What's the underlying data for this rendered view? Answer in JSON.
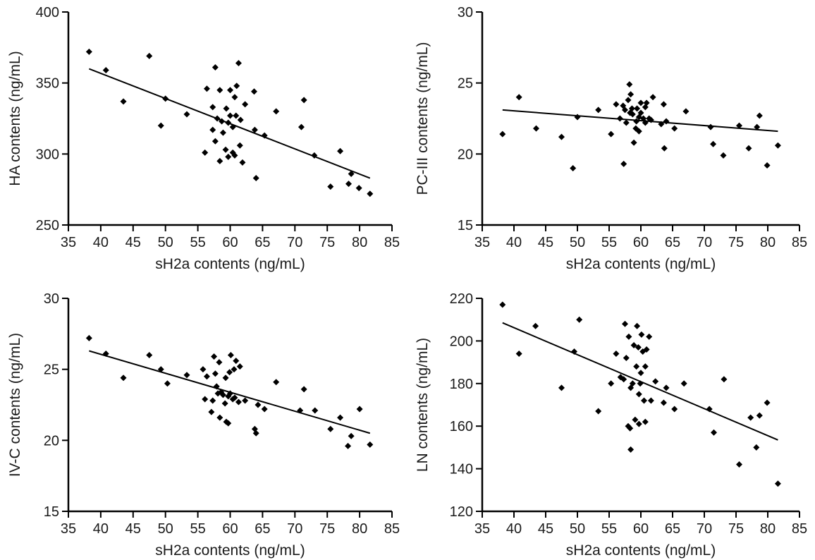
{
  "chart_data": [
    {
      "type": "scatter",
      "xlabel": "sH2a contents (ng/mL)",
      "ylabel": "HA contents (ng/mL)",
      "xlim": [
        35,
        85
      ],
      "ylim": [
        250,
        400
      ],
      "xticks": [
        35,
        40,
        45,
        50,
        55,
        60,
        65,
        70,
        75,
        80,
        85
      ],
      "yticks": [
        250,
        300,
        350,
        400
      ],
      "grid": false,
      "points": [
        [
          38.2,
          372
        ],
        [
          40.8,
          359
        ],
        [
          43.5,
          337
        ],
        [
          47.5,
          369
        ],
        [
          49.3,
          320
        ],
        [
          50,
          339
        ],
        [
          53.3,
          328
        ],
        [
          56.1,
          301
        ],
        [
          56.4,
          346
        ],
        [
          57.3,
          333
        ],
        [
          57.3,
          317
        ],
        [
          57.7,
          361
        ],
        [
          57.7,
          309
        ],
        [
          58,
          325
        ],
        [
          58.4,
          345
        ],
        [
          58.4,
          295
        ],
        [
          58.7,
          323
        ],
        [
          58.9,
          315
        ],
        [
          59.3,
          303
        ],
        [
          59.4,
          332
        ],
        [
          59.7,
          322
        ],
        [
          59.7,
          298
        ],
        [
          60,
          327
        ],
        [
          60,
          345
        ],
        [
          60.4,
          301
        ],
        [
          60.4,
          319
        ],
        [
          60.7,
          340
        ],
        [
          60.7,
          299
        ],
        [
          60.9,
          327
        ],
        [
          61,
          348
        ],
        [
          61.3,
          364
        ],
        [
          61.5,
          306
        ],
        [
          61.6,
          324
        ],
        [
          61.9,
          294
        ],
        [
          62.3,
          335
        ],
        [
          63.7,
          344
        ],
        [
          63.8,
          317
        ],
        [
          64,
          283
        ],
        [
          65.3,
          313
        ],
        [
          67.1,
          330
        ],
        [
          71,
          319
        ],
        [
          71.4,
          338
        ],
        [
          73,
          299
        ],
        [
          77,
          302
        ],
        [
          75.5,
          277
        ],
        [
          78.3,
          279
        ],
        [
          78.7,
          286
        ],
        [
          79.9,
          276
        ],
        [
          81.6,
          272
        ]
      ],
      "trend": [
        [
          38.2,
          360
        ],
        [
          81.6,
          283
        ]
      ]
    },
    {
      "type": "scatter",
      "xlabel": "sH2a contents (ng/mL)",
      "ylabel": "PC-III contents (ng/mL)",
      "xlim": [
        35,
        85
      ],
      "ylim": [
        15,
        30
      ],
      "xticks": [
        35,
        40,
        45,
        50,
        55,
        60,
        65,
        70,
        75,
        80,
        85
      ],
      "yticks": [
        15,
        20,
        25,
        30
      ],
      "grid": false,
      "points": [
        [
          38.2,
          21.4
        ],
        [
          40.8,
          24
        ],
        [
          43.5,
          21.8
        ],
        [
          47.5,
          21.2
        ],
        [
          49.3,
          19
        ],
        [
          50,
          22.6
        ],
        [
          53.3,
          23.1
        ],
        [
          55.3,
          21.4
        ],
        [
          56.1,
          23.5
        ],
        [
          56.7,
          22.5
        ],
        [
          57.2,
          23.4
        ],
        [
          57.3,
          19.3
        ],
        [
          57.5,
          23.1
        ],
        [
          57.7,
          22.2
        ],
        [
          58,
          23.8
        ],
        [
          58.2,
          24.9
        ],
        [
          58.3,
          22.9
        ],
        [
          58.4,
          24.2
        ],
        [
          58.6,
          23.2
        ],
        [
          58.7,
          22.8
        ],
        [
          58.9,
          20.8
        ],
        [
          59.2,
          21.8
        ],
        [
          59.3,
          22.3
        ],
        [
          59.4,
          23.2
        ],
        [
          59.7,
          22.6
        ],
        [
          59.7,
          21.6
        ],
        [
          60,
          22.9
        ],
        [
          60,
          23.6
        ],
        [
          60.4,
          22.5
        ],
        [
          60.7,
          23.3
        ],
        [
          60.7,
          22.2
        ],
        [
          60.9,
          23.6
        ],
        [
          61.3,
          22.5
        ],
        [
          61.9,
          24
        ],
        [
          61.6,
          22.4
        ],
        [
          63.2,
          22.1
        ],
        [
          63.6,
          23.5
        ],
        [
          63.7,
          20.4
        ],
        [
          64,
          22.3
        ],
        [
          65.3,
          21.8
        ],
        [
          67.1,
          23
        ],
        [
          71,
          21.9
        ],
        [
          71.4,
          20.7
        ],
        [
          73,
          19.9
        ],
        [
          75.5,
          22
        ],
        [
          77,
          20.4
        ],
        [
          78.3,
          21.9
        ],
        [
          78.7,
          22.7
        ],
        [
          79.9,
          19.2
        ],
        [
          81.6,
          20.6
        ]
      ],
      "trend": [
        [
          38.2,
          23.1
        ],
        [
          81.6,
          21.6
        ]
      ]
    },
    {
      "type": "scatter",
      "xlabel": "sH2a contents (ng/mL)",
      "ylabel": "IV-C contents (ng/mL)",
      "xlim": [
        35,
        85
      ],
      "ylim": [
        15,
        30
      ],
      "xticks": [
        35,
        40,
        45,
        50,
        55,
        60,
        65,
        70,
        75,
        80,
        85
      ],
      "yticks": [
        15,
        20,
        25,
        30
      ],
      "grid": false,
      "points": [
        [
          38.2,
          27.2
        ],
        [
          40.8,
          26.1
        ],
        [
          43.5,
          24.4
        ],
        [
          47.5,
          26
        ],
        [
          49.3,
          25
        ],
        [
          50.3,
          24
        ],
        [
          53.3,
          24.6
        ],
        [
          55.8,
          25
        ],
        [
          56.1,
          22.9
        ],
        [
          56.4,
          24.5
        ],
        [
          57.1,
          22
        ],
        [
          57.3,
          22.8
        ],
        [
          57.5,
          25.9
        ],
        [
          57.7,
          24.7
        ],
        [
          57.9,
          23.8
        ],
        [
          58.1,
          23.3
        ],
        [
          58.3,
          25.5
        ],
        [
          58.4,
          21.6
        ],
        [
          58.6,
          23.4
        ],
        [
          58.9,
          23.2
        ],
        [
          59.2,
          22.6
        ],
        [
          59.3,
          24.4
        ],
        [
          59.4,
          21.3
        ],
        [
          59.7,
          21.2
        ],
        [
          59.7,
          23.1
        ],
        [
          59.9,
          24.8
        ],
        [
          60,
          23.3
        ],
        [
          60.1,
          26
        ],
        [
          60.4,
          22.9
        ],
        [
          60.6,
          25
        ],
        [
          60.7,
          23
        ],
        [
          60.9,
          25.6
        ],
        [
          61.3,
          22.7
        ],
        [
          61.5,
          25.2
        ],
        [
          62.3,
          22.8
        ],
        [
          63.8,
          20.8
        ],
        [
          64,
          20.5
        ],
        [
          64.3,
          22.5
        ],
        [
          65.3,
          22.2
        ],
        [
          67.1,
          24.1
        ],
        [
          71.4,
          23.6
        ],
        [
          73.1,
          22.1
        ],
        [
          70.8,
          22.1
        ],
        [
          75.5,
          20.8
        ],
        [
          77,
          21.6
        ],
        [
          78.2,
          19.6
        ],
        [
          78.7,
          20.3
        ],
        [
          80,
          22.2
        ],
        [
          81.6,
          19.7
        ]
      ],
      "trend": [
        [
          38.2,
          26.3
        ],
        [
          81.6,
          20.5
        ]
      ]
    },
    {
      "type": "scatter",
      "xlabel": "sH2a contents (ng/mL)",
      "ylabel": "LN contents (ng/mL)",
      "xlim": [
        35,
        85
      ],
      "ylim": [
        120,
        220
      ],
      "xticks": [
        35,
        40,
        45,
        50,
        55,
        60,
        65,
        70,
        75,
        80,
        85
      ],
      "yticks": [
        120,
        140,
        160,
        180,
        200,
        220
      ],
      "grid": false,
      "points": [
        [
          38.2,
          217
        ],
        [
          40.8,
          194
        ],
        [
          43.4,
          207
        ],
        [
          47.5,
          178
        ],
        [
          49.5,
          195
        ],
        [
          50.3,
          210
        ],
        [
          53.3,
          167
        ],
        [
          55.3,
          180
        ],
        [
          56.1,
          194
        ],
        [
          56.8,
          183
        ],
        [
          57.3,
          182
        ],
        [
          57.5,
          208
        ],
        [
          57.7,
          192
        ],
        [
          58,
          160
        ],
        [
          58.1,
          202
        ],
        [
          58.3,
          159
        ],
        [
          58.4,
          149
        ],
        [
          58.4,
          178
        ],
        [
          58.7,
          180
        ],
        [
          58.9,
          198
        ],
        [
          59.1,
          163
        ],
        [
          59.3,
          188
        ],
        [
          59.4,
          207
        ],
        [
          59.6,
          197
        ],
        [
          59.7,
          161
        ],
        [
          59.7,
          175
        ],
        [
          59.9,
          180
        ],
        [
          60,
          185
        ],
        [
          60.1,
          203
        ],
        [
          60.3,
          195
        ],
        [
          60.5,
          172
        ],
        [
          60.7,
          188
        ],
        [
          60.9,
          196
        ],
        [
          60.7,
          162
        ],
        [
          61.3,
          202
        ],
        [
          61.6,
          172
        ],
        [
          62.3,
          181
        ],
        [
          63.6,
          171
        ],
        [
          64,
          178
        ],
        [
          65.3,
          168
        ],
        [
          66.8,
          180
        ],
        [
          70.8,
          168
        ],
        [
          71.5,
          157
        ],
        [
          73.1,
          182
        ],
        [
          75.5,
          142
        ],
        [
          77.3,
          164
        ],
        [
          78.2,
          150
        ],
        [
          78.7,
          165
        ],
        [
          79.9,
          171
        ],
        [
          81.6,
          133
        ]
      ],
      "trend": [
        [
          38.2,
          208.5
        ],
        [
          81.6,
          153.5
        ]
      ]
    }
  ]
}
